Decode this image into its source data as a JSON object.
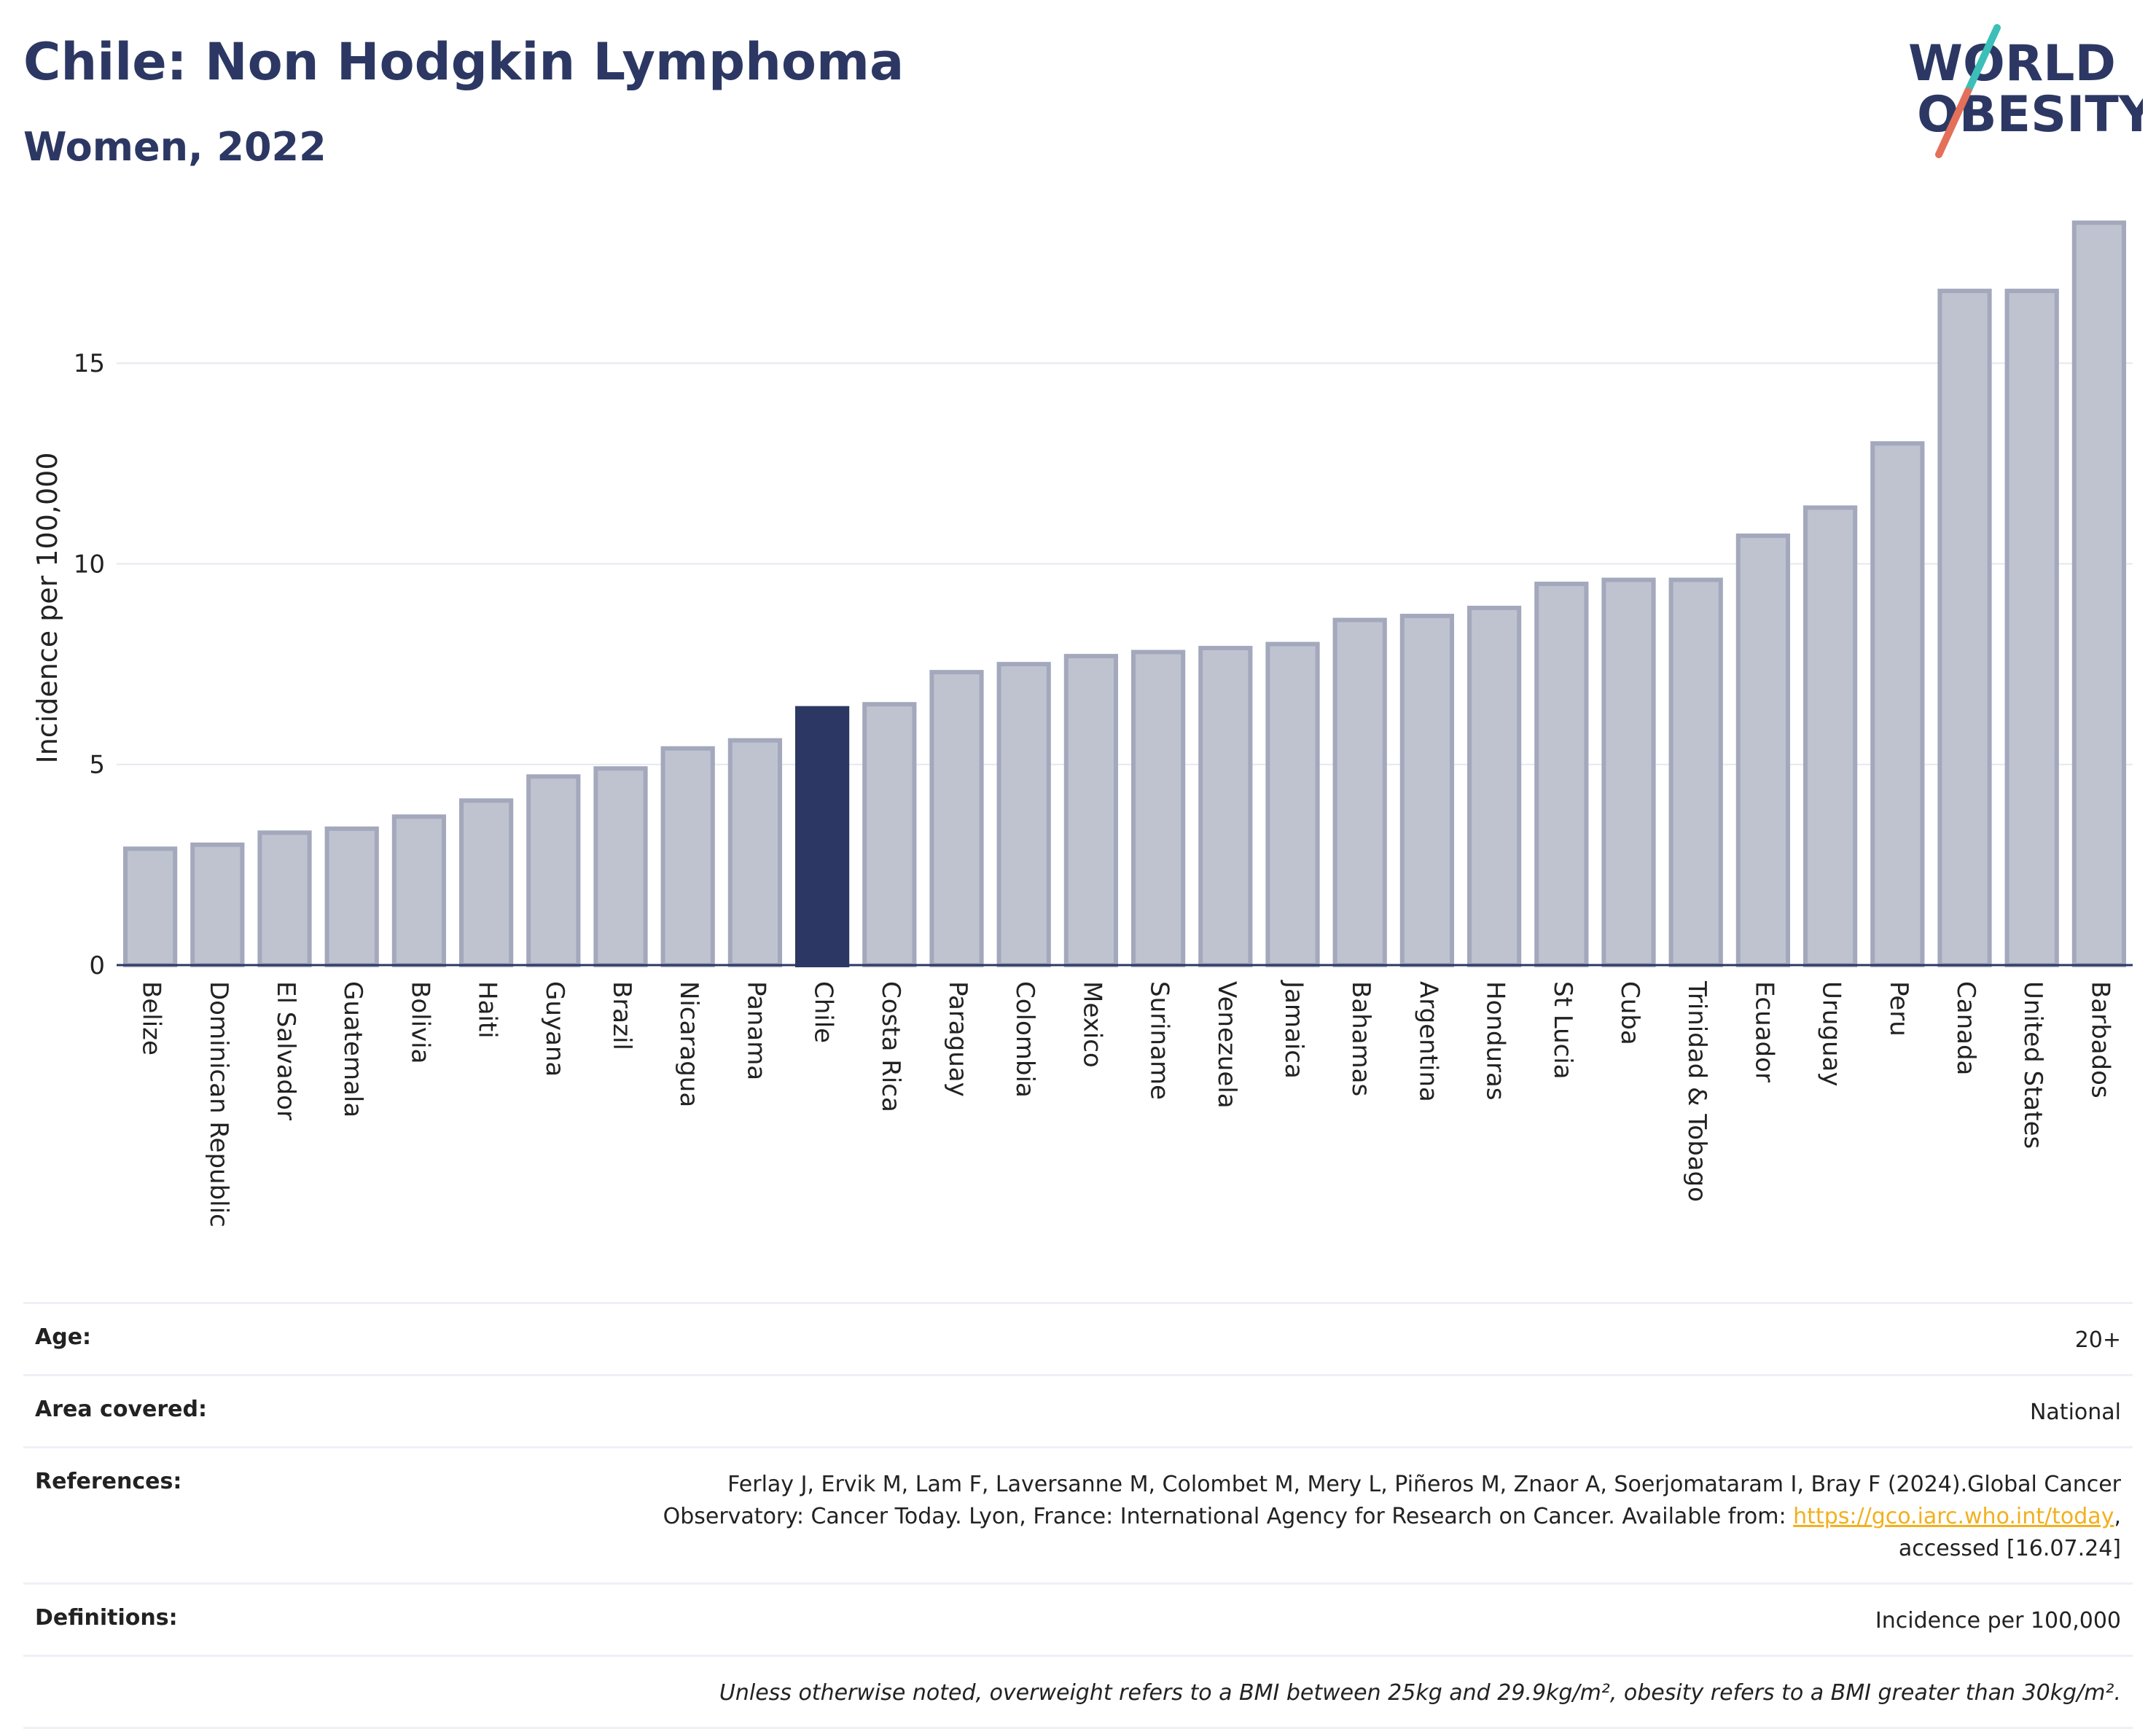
{
  "header": {
    "title": "Chile: Non Hodgkin Lymphoma",
    "subtitle": "Women, 2022"
  },
  "logo": {
    "line1": "WORLD",
    "line2": "OBESITY",
    "colors": {
      "text": "#2c3863",
      "slash_top": "#3cbfb8",
      "slash_bottom": "#e4705a"
    }
  },
  "chart_data": {
    "type": "bar",
    "ylabel": "Incidence per 100,000",
    "ylim": [
      0,
      18.6
    ],
    "yticks": [
      0,
      5,
      10,
      15
    ],
    "grid": true,
    "highlight": "Chile",
    "colors": {
      "bar": "#bfc3d0",
      "bar_stroke": "#a3a8bc",
      "highlight": "#2c3863"
    },
    "categories": [
      "Belize",
      "Dominican Republic",
      "El Salvador",
      "Guatemala",
      "Bolivia",
      "Haiti",
      "Guyana",
      "Brazil",
      "Nicaragua",
      "Panama",
      "Chile",
      "Costa Rica",
      "Paraguay",
      "Colombia",
      "Mexico",
      "Suriname",
      "Venezuela",
      "Jamaica",
      "Bahamas",
      "Argentina",
      "Honduras",
      "St Lucia",
      "Cuba",
      "Trinidad & Tobago",
      "Ecuador",
      "Uruguay",
      "Peru",
      "Canada",
      "United States",
      "Barbados"
    ],
    "values": [
      2.9,
      3.0,
      3.3,
      3.4,
      3.7,
      4.1,
      4.7,
      4.9,
      5.4,
      5.6,
      6.4,
      6.5,
      7.3,
      7.5,
      7.7,
      7.8,
      7.9,
      8.0,
      8.6,
      8.7,
      8.9,
      9.5,
      9.6,
      9.6,
      10.7,
      11.4,
      13.0,
      16.8,
      16.8,
      18.5
    ]
  },
  "info": {
    "age_label": "Age:",
    "age_value": "20+",
    "area_label": "Area covered:",
    "area_value": "National",
    "references_label": "References:",
    "references_line1": "Ferlay J, Ervik M, Lam F, Laversanne M, Colombet M, Mery L, Piñeros M, Znaor A, Soerjomataram I, Bray F (2024).Global Cancer",
    "references_line2_pre": "Observatory: Cancer Today. Lyon, France: International Agency for Research on Cancer. Available from: ",
    "references_link": "https://gco.iarc.who.int/today",
    "references_line2_post": ",",
    "references_line3": "accessed [16.07.24]",
    "definitions_label": "Definitions:",
    "definitions_value": "Incidence per 100,000",
    "note": "Unless otherwise noted, overweight refers to a BMI between 25kg and 29.9kg/m², obesity refers to a BMI greater than 30kg/m²."
  }
}
